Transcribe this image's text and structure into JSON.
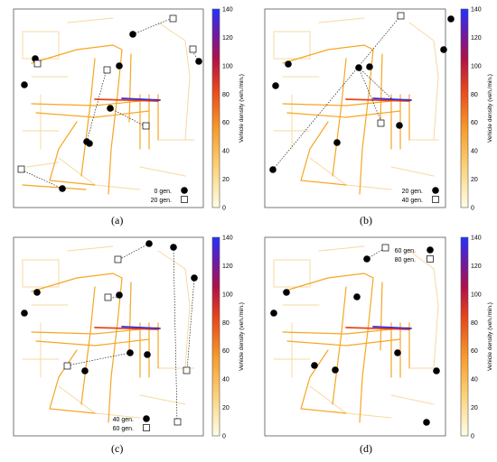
{
  "colors": {
    "road_light": "#f7c876",
    "road_mid": "#f5a623",
    "road_high": "#e8441a",
    "road_peak": "#3b2bd6",
    "marker": "#000000",
    "frame": "#555555"
  },
  "colorbar": {
    "title": "Vehicle density (veh./min.)",
    "ticks": [
      "140",
      "120",
      "100",
      "80",
      "60",
      "40",
      "20",
      "0"
    ],
    "range": [
      0,
      140
    ]
  },
  "panels": [
    {
      "caption": "(a)",
      "legend": [
        {
          "label": "0 gen.",
          "marker": "circle"
        },
        {
          "label": "20 gen.",
          "marker": "square"
        }
      ]
    },
    {
      "caption": "(b)",
      "legend": [
        {
          "label": "20 gen.",
          "marker": "circle"
        },
        {
          "label": "40 gen.",
          "marker": "square"
        }
      ]
    },
    {
      "caption": "(c)",
      "legend": [
        {
          "label": "40 gen.",
          "marker": "circle"
        },
        {
          "label": "60 gen.",
          "marker": "square"
        }
      ]
    },
    {
      "caption": "(d)",
      "legend": [
        {
          "label": "60 gen.",
          "marker": "circle"
        },
        {
          "label": "80 gen.",
          "marker": "square"
        }
      ]
    }
  ]
}
